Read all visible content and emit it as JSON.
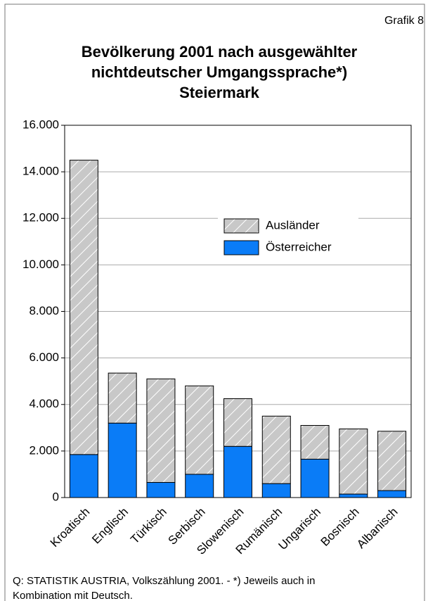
{
  "chart_data": {
    "type": "stacked_bar",
    "corner_label": "Grafik 8",
    "title": [
      "Bevölkerung 2001 nach ausgewählter",
      "nichtdeutscher Umgangssprache*)",
      "Steiermark"
    ],
    "categories": [
      "Kroatisch",
      "Englisch",
      "Türkisch",
      "Serbisch",
      "Slowenisch",
      "Rumänisch",
      "Ungarisch",
      "Bosnisch",
      "Albanisch"
    ],
    "series": [
      {
        "name": "Österreicher",
        "color": "#0a7cf7",
        "values": [
          1850,
          3200,
          650,
          1000,
          2200,
          600,
          1650,
          150,
          300
        ]
      },
      {
        "name": "Ausländer",
        "color": "#c8c8c8",
        "hatch": true,
        "values": [
          12650,
          2150,
          4450,
          3800,
          2050,
          2900,
          1450,
          2800,
          2550
        ]
      }
    ],
    "ylim": [
      0,
      16000
    ],
    "yticks": [
      0,
      {
        "value": 2000,
        "label": "2.000"
      },
      {
        "value": 4000,
        "label": "4.000"
      },
      {
        "value": 6000,
        "label": "6.000"
      },
      {
        "value": 8000,
        "label": "8.000"
      },
      {
        "value": 10000,
        "label": "10.000"
      },
      {
        "value": 12000,
        "label": "12.000"
      },
      {
        "value": 14000,
        "label": "14.000"
      },
      {
        "value": 16000,
        "label": "16.000"
      }
    ],
    "grid": true,
    "source": [
      "Q: STATISTIK AUSTRIA, Volkszählung 2001. - *) Jeweils auch in",
      "Kombination mit Deutsch."
    ]
  }
}
